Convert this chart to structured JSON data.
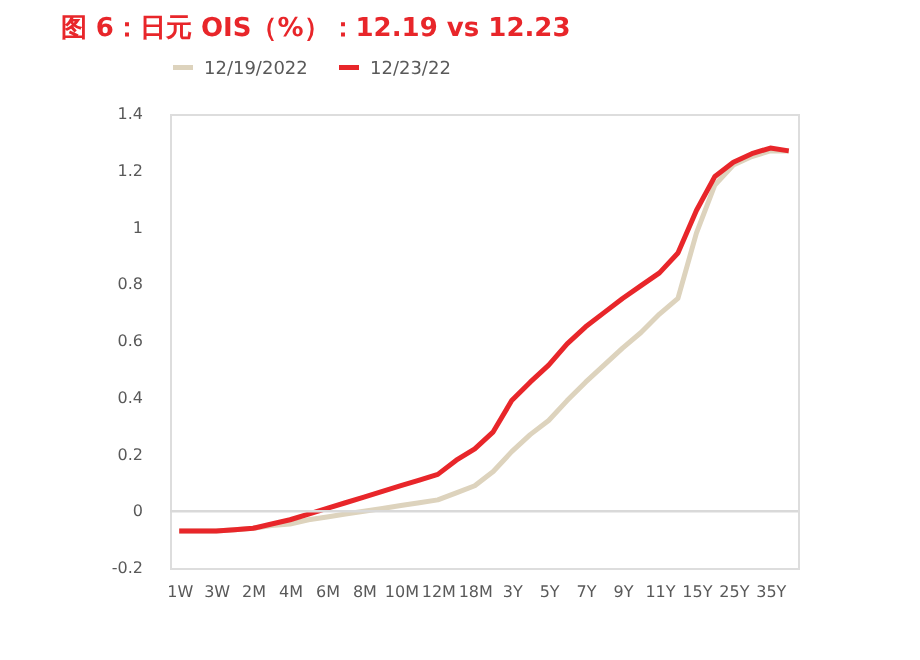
{
  "chart_data": {
    "type": "line",
    "title": "图 6：日元 OIS（%）：12.19 vs 12.23",
    "categories": [
      "1W",
      null,
      "3W",
      null,
      "2M",
      null,
      "4M",
      null,
      "6M",
      null,
      "8M",
      null,
      "10M",
      null,
      "12M",
      null,
      "18M",
      null,
      "3Y",
      null,
      "5Y",
      null,
      "7Y",
      null,
      "9Y",
      null,
      "11Y",
      null,
      "15Y",
      null,
      "25Y",
      null,
      "35Y",
      null
    ],
    "series": [
      {
        "name": "12/19/2022",
        "color": "#ddd3bd",
        "values": [
          -0.07,
          -0.07,
          -0.07,
          -0.065,
          -0.06,
          -0.05,
          -0.045,
          -0.03,
          -0.02,
          -0.01,
          0.0,
          0.01,
          0.02,
          0.03,
          0.04,
          0.065,
          0.09,
          0.14,
          0.21,
          0.27,
          0.32,
          0.39,
          0.455,
          0.515,
          0.575,
          0.63,
          0.695,
          0.75,
          0.98,
          1.15,
          1.22,
          1.25,
          1.27,
          1.27
        ]
      },
      {
        "name": "12/23/22",
        "color": "#e8262a",
        "values": [
          -0.07,
          -0.07,
          -0.07,
          -0.065,
          -0.06,
          -0.045,
          -0.03,
          -0.01,
          0.01,
          0.03,
          0.05,
          0.07,
          0.09,
          0.11,
          0.13,
          0.18,
          0.22,
          0.28,
          0.39,
          0.455,
          0.515,
          0.59,
          0.65,
          0.7,
          0.75,
          0.795,
          0.84,
          0.91,
          1.06,
          1.18,
          1.23,
          1.26,
          1.28,
          1.27
        ]
      }
    ],
    "ylim": [
      -0.2,
      1.4
    ],
    "yticks": [
      -0.2,
      0,
      0.2,
      0.4,
      0.6,
      0.8,
      1,
      1.2,
      1.4
    ],
    "ref_lines": [
      {
        "axis": "y",
        "value": 0,
        "color": "#d9d9d9"
      }
    ],
    "grid": false,
    "legend": "top",
    "marker": "none",
    "line_style": "solid"
  }
}
